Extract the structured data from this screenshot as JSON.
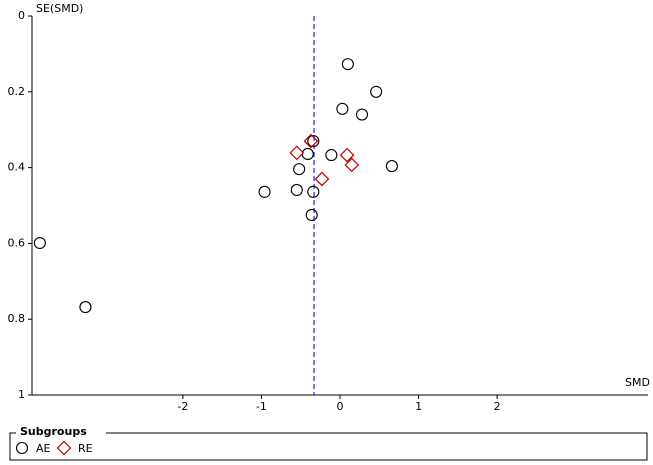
{
  "chart_data": {
    "type": "scatter",
    "y_axis_label": "SE(SMD)",
    "x_axis_label": "SMD",
    "xlim": [
      -3.92,
      3.92
    ],
    "xticks": [
      -2,
      -1,
      0,
      1,
      2
    ],
    "ylim": [
      0,
      1
    ],
    "yticks": [
      0,
      0.2,
      0.4,
      0.6,
      0.8,
      1
    ],
    "y_inverted": true,
    "grid": false,
    "reference_line": {
      "x": -0.33,
      "color": "#2b2bb8",
      "dashed": true
    },
    "legend_title": "Subgroups",
    "series": [
      {
        "name": "AE",
        "color": "#000000",
        "marker": "circle",
        "x": [
          0.1,
          0.46,
          0.03,
          0.28,
          -0.34,
          -0.41,
          -0.11,
          -0.52,
          0.66,
          -0.96,
          -0.55,
          -0.34,
          -0.36,
          -3.82,
          -3.24
        ],
        "values": [
          0.127,
          0.2,
          0.245,
          0.26,
          0.33,
          0.364,
          0.367,
          0.404,
          0.396,
          0.464,
          0.459,
          0.464,
          0.525,
          0.599,
          0.768
        ]
      },
      {
        "name": "RE",
        "color": "#c00000",
        "marker": "diamond",
        "x": [
          -0.37,
          -0.55,
          0.09,
          0.15,
          -0.23
        ],
        "values": [
          0.33,
          0.361,
          0.367,
          0.393,
          0.43
        ]
      }
    ]
  }
}
